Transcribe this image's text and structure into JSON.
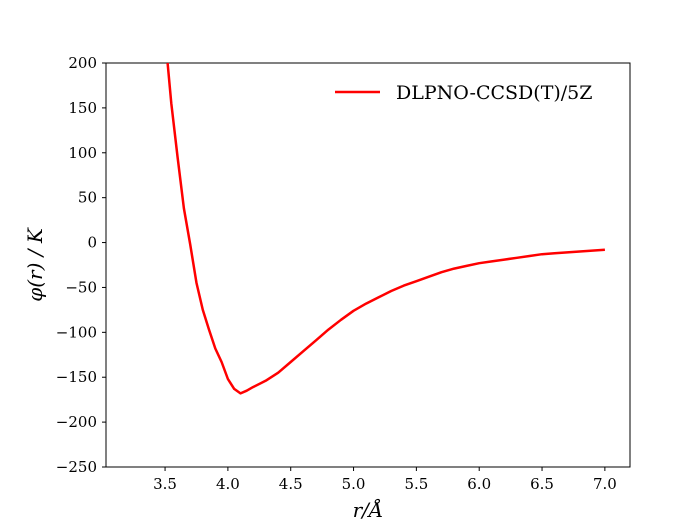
{
  "chart_data": {
    "type": "line",
    "title": "",
    "xlabel": "r/Å",
    "ylabel": "φ(r) / K",
    "xlim": [
      3.03,
      7.2
    ],
    "ylim": [
      -250,
      200
    ],
    "xticks": [
      3.5,
      4.0,
      4.5,
      5.0,
      5.5,
      6.0,
      6.5,
      7.0
    ],
    "xtick_labels": [
      "3.5",
      "4.0",
      "4.5",
      "5.0",
      "5.5",
      "6.0",
      "6.5",
      "7.0"
    ],
    "yticks": [
      200,
      150,
      100,
      50,
      0,
      -50,
      -100,
      -150,
      -200,
      -250
    ],
    "ytick_labels": [
      "200",
      "150",
      "100",
      "50",
      "0",
      "−50",
      "−100",
      "−150",
      "−200",
      "−250"
    ],
    "grid": false,
    "legend_position": "top-right",
    "series": [
      {
        "name": "DLPNO-CCSD(T)/5Z",
        "color": "#ff0000",
        "x": [
          3.52,
          3.55,
          3.6,
          3.65,
          3.7,
          3.75,
          3.8,
          3.85,
          3.9,
          3.95,
          4.0,
          4.05,
          4.1,
          4.15,
          4.2,
          4.3,
          4.4,
          4.5,
          4.6,
          4.7,
          4.8,
          4.9,
          5.0,
          5.1,
          5.2,
          5.3,
          5.4,
          5.5,
          5.6,
          5.7,
          5.8,
          5.9,
          6.0,
          6.1,
          6.2,
          6.3,
          6.4,
          6.5,
          6.6,
          6.7,
          6.8,
          6.9,
          7.0
        ],
        "y": [
          200,
          155,
          95,
          38,
          -2,
          -45,
          -75,
          -97,
          -118,
          -133,
          -152,
          -163,
          -168,
          -165,
          -161,
          -154,
          -145,
          -133,
          -121,
          -109,
          -97,
          -86,
          -76,
          -68,
          -61,
          -54,
          -48,
          -43,
          -38,
          -33,
          -29,
          -26,
          -23,
          -21,
          -19,
          -17,
          -15,
          -13,
          -12,
          -11,
          -10,
          -9,
          -8
        ]
      }
    ]
  }
}
